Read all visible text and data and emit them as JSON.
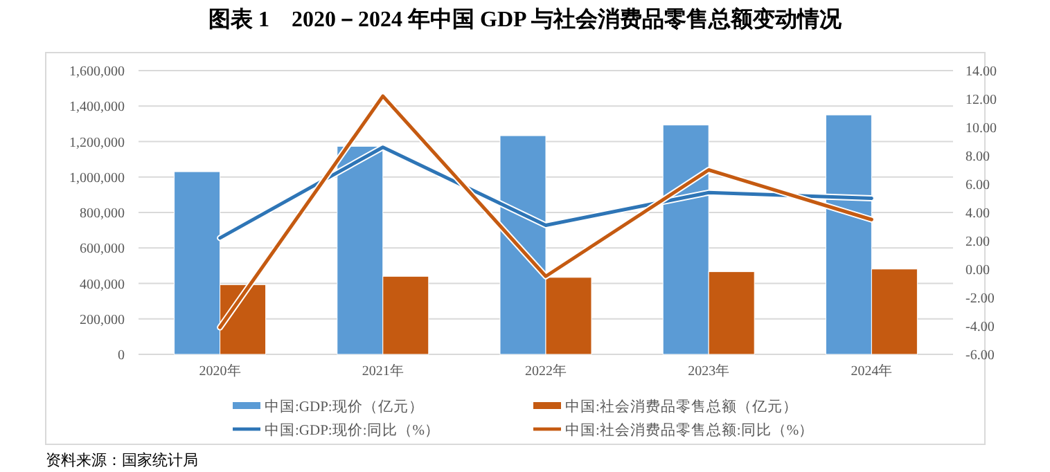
{
  "chart_data": {
    "type": "bar",
    "title": "图表 1　2020－2024 年中国 GDP 与社会消费品零售总额变动情况",
    "categories": [
      "2020年",
      "2021年",
      "2022年",
      "2023年",
      "2024年"
    ],
    "series": [
      {
        "name": "中国:GDP:现价（亿元）",
        "color": "#5b9bd5",
        "values": [
          1030000,
          1173000,
          1233000,
          1293000,
          1350000
        ]
      },
      {
        "name": "中国:社会消费品零售总额（亿元）",
        "color": "#c55a11",
        "values": [
          393000,
          440000,
          434000,
          466000,
          481000
        ]
      },
      {
        "name": "中国:GDP:现价:同比（%）",
        "type": "line",
        "axis": "y2",
        "color": "#2e75b6",
        "values": [
          2.2,
          8.6,
          3.1,
          5.4,
          5.0
        ]
      },
      {
        "name": "中国:社会消费品零售总额:同比（%）",
        "type": "line",
        "axis": "y2",
        "color": "#c55a11",
        "values": [
          -4.1,
          12.2,
          -0.5,
          7.0,
          3.5
        ]
      }
    ],
    "ylim": [
      0,
      1600000
    ],
    "yticks": [
      0,
      {
        "value": 200000,
        "label": "200,000"
      },
      {
        "value": 400000,
        "label": "400,000"
      },
      {
        "value": 600000,
        "label": "600,000"
      },
      {
        "value": 800000,
        "label": "800,000"
      },
      {
        "value": 1000000,
        "label": "1,000,000"
      },
      {
        "value": 1200000,
        "label": "1,200,000"
      },
      {
        "value": 1400000,
        "label": "1,400,000"
      },
      {
        "value": 1600000,
        "label": "1,600,000"
      }
    ],
    "y2lim": [
      -6,
      14
    ],
    "y2ticks": [
      {
        "value": -6,
        "label": "-6.00"
      },
      {
        "value": -4,
        "label": "-4.00"
      },
      {
        "value": -2,
        "label": "-2.00"
      },
      {
        "value": 0,
        "label": "0.00"
      },
      {
        "value": 2,
        "label": "2.00"
      },
      {
        "value": 4,
        "label": "4.00"
      },
      {
        "value": 6,
        "label": "6.00"
      },
      {
        "value": 8,
        "label": "8.00"
      },
      {
        "value": 10,
        "label": "10.00"
      },
      {
        "value": 12,
        "label": "12.00"
      },
      {
        "value": 14,
        "label": "14.00"
      }
    ],
    "grid": "y",
    "legend": "bottom",
    "marker": "none",
    "line_style": "solid",
    "annotations": [
      "资料来源：国家统计局"
    ]
  }
}
